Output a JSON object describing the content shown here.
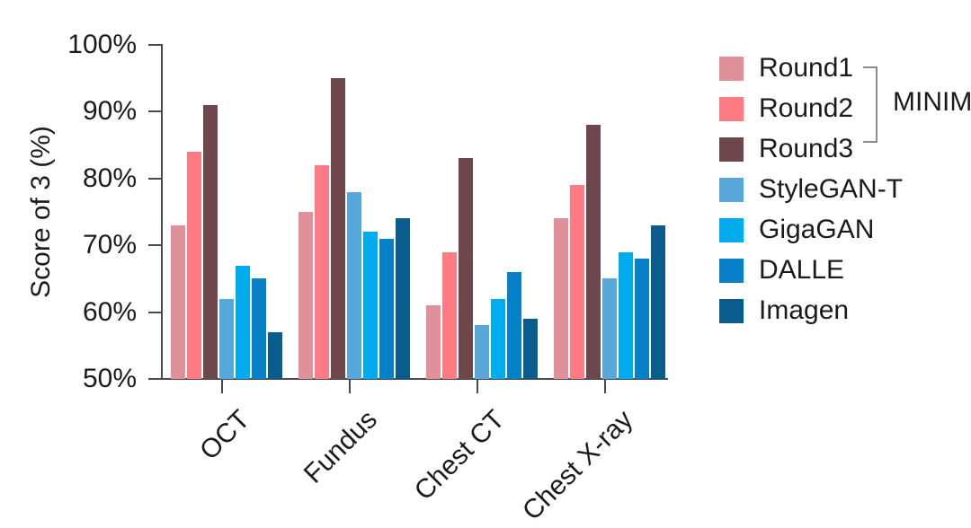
{
  "figure": {
    "background_color": "#ffffff",
    "text_color": "#1b1b1b",
    "axis_color": "#4a4a4a",
    "bracket_color": "#8a8a8a"
  },
  "chart_data": {
    "type": "bar",
    "title": "",
    "xlabel": "",
    "ylabel": "Score of 3 (%)",
    "ylim": [
      50,
      100
    ],
    "grid": false,
    "legend_position": "right",
    "yticks": [
      {
        "value": 100,
        "label": "100%"
      },
      {
        "value": 90,
        "label": "90%"
      },
      {
        "value": 80,
        "label": "80%"
      },
      {
        "value": 70,
        "label": "70%"
      },
      {
        "value": 60,
        "label": "60%"
      },
      {
        "value": 50,
        "label": "50%"
      }
    ],
    "categories": [
      "OCT",
      "Fundus",
      "Chest CT",
      "Chest X-ray"
    ],
    "series": [
      {
        "name": "Round1",
        "color": "#E09098",
        "group": "MINIM",
        "values": [
          73,
          75,
          61,
          74
        ]
      },
      {
        "name": "Round2",
        "color": "#FF7B84",
        "group": "MINIM",
        "values": [
          84,
          82,
          69,
          79
        ]
      },
      {
        "name": "Round3",
        "color": "#6D474C",
        "group": "MINIM",
        "values": [
          91,
          95,
          83,
          88
        ]
      },
      {
        "name": "StyleGAN-T",
        "color": "#57A7DB",
        "group": null,
        "values": [
          62,
          78,
          58,
          65
        ]
      },
      {
        "name": "GigaGAN",
        "color": "#00ACEE",
        "group": null,
        "values": [
          67,
          72,
          62,
          69
        ]
      },
      {
        "name": "DALLE",
        "color": "#0680C6",
        "group": null,
        "values": [
          65,
          71,
          66,
          68
        ]
      },
      {
        "name": "Imagen",
        "color": "#0A5C8C",
        "group": null,
        "values": [
          57,
          74,
          59,
          73
        ]
      }
    ],
    "legend": {
      "group_label": "MINIM",
      "grouped_series": [
        "Round1",
        "Round2",
        "Round3"
      ]
    }
  }
}
